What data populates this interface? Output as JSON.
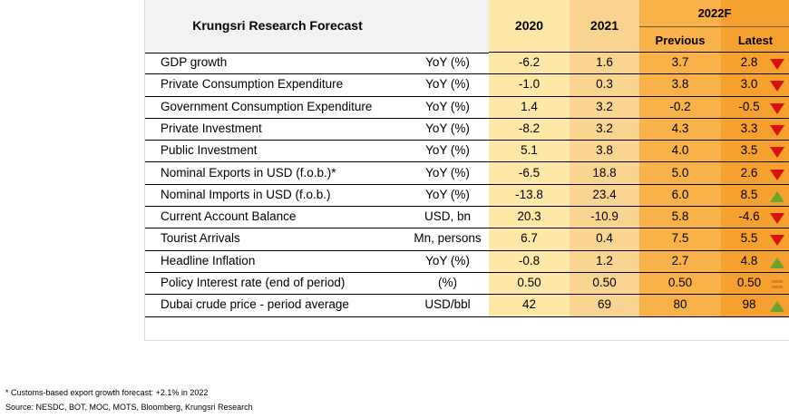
{
  "table": {
    "title": "Krungsri Research Forecast",
    "col_2020": "2020",
    "col_2021": "2021",
    "col_2022f": "2022F",
    "col_previous": "Previous",
    "col_latest": "Latest",
    "rows": [
      {
        "label": "GDP growth",
        "unit": "YoY (%)",
        "y2020": "-6.2",
        "y2021": "1.6",
        "previous": "3.7",
        "latest": "2.8",
        "trend": "down-arrow-icon"
      },
      {
        "label": "Private Consumption Expenditure",
        "unit": "YoY (%)",
        "y2020": "-1.0",
        "y2021": "0.3",
        "previous": "3.8",
        "latest": "3.0",
        "trend": "down-arrow-icon"
      },
      {
        "label": "Government Consumption Expenditure",
        "unit": "YoY (%)",
        "y2020": "1.4",
        "y2021": "3.2",
        "previous": "-0.2",
        "latest": "-0.5",
        "trend": "down-arrow-icon"
      },
      {
        "label": "Private Investment",
        "unit": "YoY (%)",
        "y2020": "-8.2",
        "y2021": "3.2",
        "previous": "4.3",
        "latest": "3.3",
        "trend": "down-arrow-icon"
      },
      {
        "label": "Public Investment",
        "unit": "YoY (%)",
        "y2020": "5.1",
        "y2021": "3.8",
        "previous": "4.0",
        "latest": "3.5",
        "trend": "down-arrow-icon"
      },
      {
        "label": "Nominal Exports in USD (f.o.b.)*",
        "unit": "YoY (%)",
        "y2020": "-6.5",
        "y2021": "18.8",
        "previous": "5.0",
        "latest": "2.6",
        "trend": "down-arrow-icon"
      },
      {
        "label": "Nominal Imports in USD (f.o.b.)",
        "unit": "YoY (%)",
        "y2020": "-13.8",
        "y2021": "23.4",
        "previous": "6.0",
        "latest": "8.5",
        "trend": "up-arrow-icon"
      },
      {
        "label": "Current Account Balance",
        "unit": "USD, bn",
        "y2020": "20.3",
        "y2021": "-10.9",
        "previous": "5.8",
        "latest": "-4.6",
        "trend": "down-arrow-icon"
      },
      {
        "label": "Tourist Arrivals",
        "unit": "Mn, persons",
        "y2020": "6.7",
        "y2021": "0.4",
        "previous": "7.5",
        "latest": "5.5",
        "trend": "down-arrow-icon"
      },
      {
        "label": "Headline Inflation",
        "unit": "YoY (%)",
        "y2020": "-0.8",
        "y2021": "1.2",
        "previous": "2.7",
        "latest": "4.8",
        "trend": "up-arrow-icon"
      },
      {
        "label": "Policy Interest rate (end of period)",
        "unit": "(%)",
        "y2020": "0.50",
        "y2021": "0.50",
        "previous": "0.50",
        "latest": "0.50",
        "trend": "equal-icon"
      },
      {
        "label": "Dubai crude price - period average",
        "unit": "USD/bbl",
        "y2020": "42",
        "y2021": "69",
        "previous": "80",
        "latest": "98",
        "trend": "up-arrow-icon"
      }
    ]
  },
  "colors": {
    "down": "#d9140e",
    "up": "#6aa32e",
    "equal": "#e07b24"
  },
  "footnotes": {
    "note": "* Customs-based export growth forecast: +2.1% in 2022",
    "source": "Source: NESDC, BOT, MOC, MOTS, Bloomberg, Krungsri Research"
  }
}
